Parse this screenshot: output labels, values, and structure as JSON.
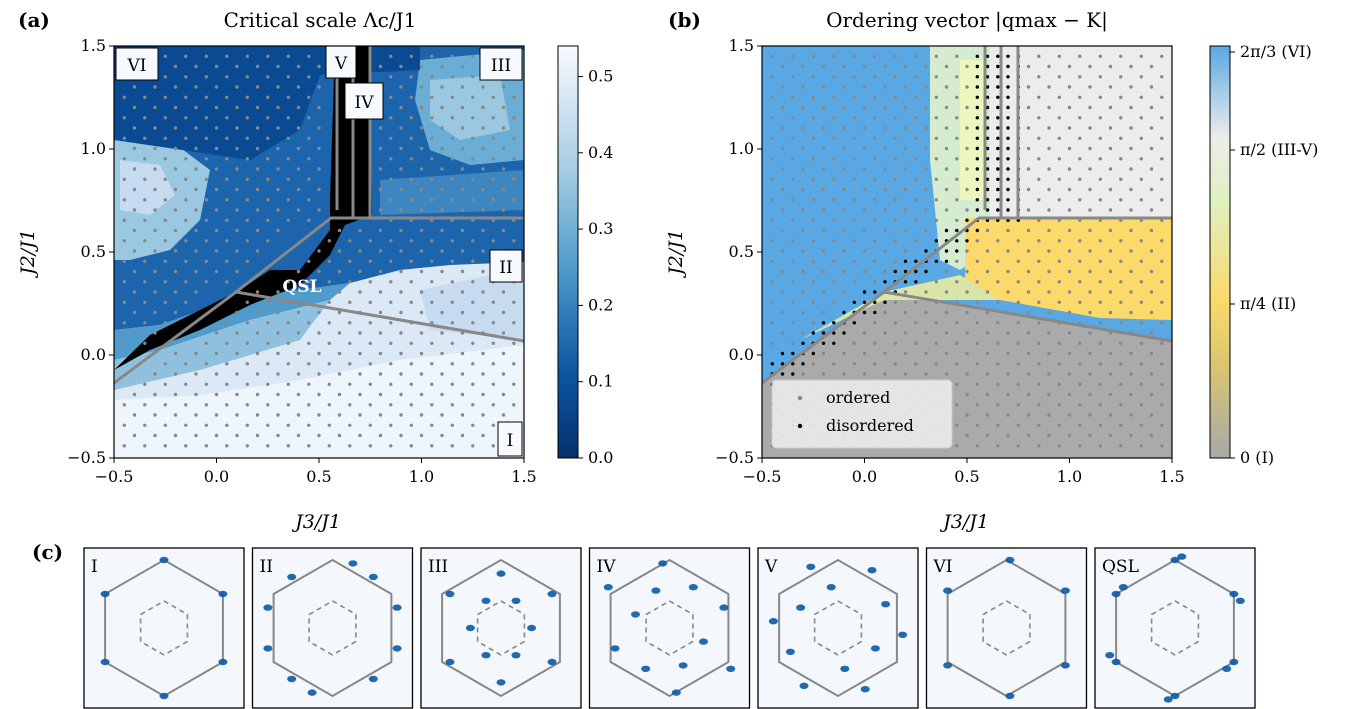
{
  "figure": {
    "panel_labels": [
      "(a)",
      "(b)",
      "(c)"
    ],
    "panel_a": {
      "title": "Critical scale Λc/J1",
      "xlabel": "J3/J1",
      "ylabel": "J2/J1",
      "xticks": [
        "−0.5",
        "0.0",
        "0.5",
        "1.0",
        "1.5"
      ],
      "yticks": [
        "−0.5",
        "0.0",
        "0.5",
        "1.0",
        "1.5"
      ],
      "colorbar_ticks": [
        "0.0",
        "0.1",
        "0.2",
        "0.3",
        "0.4",
        "0.5"
      ],
      "phase_labels": [
        "VI",
        "V",
        "IV",
        "III",
        "II",
        "I",
        "QSL"
      ]
    },
    "panel_b": {
      "title": "Ordering vector |qmax − K|",
      "xlabel": "J3/J1",
      "ylabel": "J2/J1",
      "xticks": [
        "−0.5",
        "0.0",
        "0.5",
        "1.0",
        "1.5"
      ],
      "yticks": [
        "−0.5",
        "0.0",
        "0.5",
        "1.0",
        "1.5"
      ],
      "colorbar_ticks": [
        "2π/3 (VI)",
        "π/2 (III-V)",
        "π/4 (II)",
        "0 (I)"
      ],
      "legend": [
        "ordered",
        "disordered"
      ]
    },
    "panel_c": {
      "labels": [
        "I",
        "II",
        "III",
        "IV",
        "V",
        "VI",
        "QSL"
      ]
    },
    "colors": {
      "blues_dark": "#08306b",
      "blues_light": "#f7fbff",
      "ordered_dot": "#888888",
      "disordered_dot": "#000000",
      "boundary": "#888888",
      "phaseVI": "#5aa8e3",
      "phaseII": "#fbd96a",
      "phaseI": "#aaaaaa",
      "phaseIII": "#ececec"
    }
  },
  "chart_data": [
    {
      "type": "heatmap",
      "title": "Critical scale Λc/J1",
      "xlabel": "J3/J1",
      "ylabel": "J2/J1",
      "xlim": [
        -0.5,
        1.5
      ],
      "ylim": [
        -0.5,
        1.5
      ],
      "colorbar_range": [
        0.0,
        0.54
      ],
      "phase_boundaries": [
        [
          [
            -0.5,
            -0.15
          ],
          [
            0.18,
            0.28
          ],
          [
            0.6,
            0.67
          ],
          [
            1.5,
            0.67
          ]
        ],
        [
          [
            0.18,
            0.28
          ],
          [
            1.5,
            0.07
          ]
        ],
        [
          [
            0.55,
            1.5
          ],
          [
            0.55,
            0.72
          ]
        ],
        [
          [
            0.62,
            1.5
          ],
          [
            0.62,
            0.7
          ]
        ],
        [
          [
            0.7,
            1.5
          ],
          [
            0.7,
            0.67
          ]
        ]
      ],
      "phases": [
        {
          "name": "I",
          "approx_value": 0.5
        },
        {
          "name": "II",
          "approx_value": 0.4
        },
        {
          "name": "III",
          "approx_value": 0.3
        },
        {
          "name": "VI",
          "approx_value": 0.03
        },
        {
          "name": "QSL",
          "approx_value": 0.0
        }
      ]
    },
    {
      "type": "heatmap",
      "title": "Ordering vector |qmax − K|",
      "xlabel": "J3/J1",
      "ylabel": "J2/J1",
      "xlim": [
        -0.5,
        1.5
      ],
      "ylim": [
        -0.5,
        1.5
      ],
      "colorbar_ticks_values": [
        0,
        0.7854,
        1.5708,
        2.0944
      ],
      "legend": [
        "ordered",
        "disordered"
      ]
    }
  ]
}
